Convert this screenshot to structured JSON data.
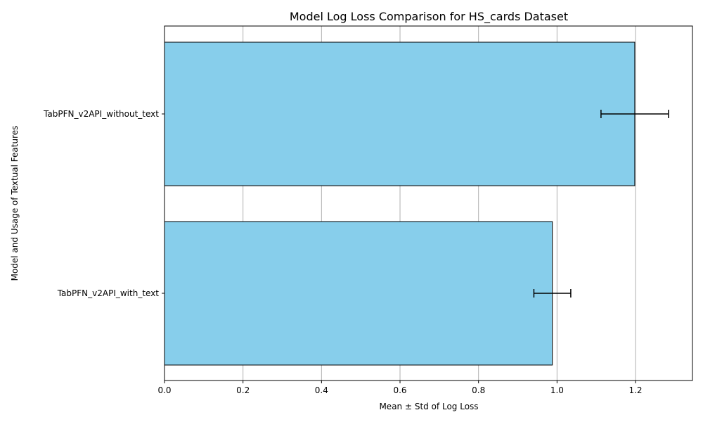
{
  "chart_data": {
    "type": "bar",
    "orientation": "horizontal",
    "title": "Model Log Loss Comparison for HS_cards Dataset",
    "xlabel": "Mean ± Std of Log Loss",
    "ylabel": "Model and Usage of Textual Features",
    "categories": [
      "TabPFN_v2API_without_text",
      "TabPFN_v2API_with_text"
    ],
    "values": [
      1.198,
      0.988
    ],
    "errors": [
      0.086,
      0.047
    ],
    "xlim": [
      0,
      1.345
    ],
    "xticks": [
      0.0,
      0.2,
      0.4,
      0.6,
      0.8,
      1.0,
      1.2
    ],
    "xtick_labels": [
      "0.0",
      "0.2",
      "0.4",
      "0.6",
      "0.8",
      "1.0",
      "1.2"
    ],
    "grid": "x",
    "bar_color": "#87ceeb",
    "edge_color": "#000000",
    "grid_color": "#b0b0b0"
  }
}
